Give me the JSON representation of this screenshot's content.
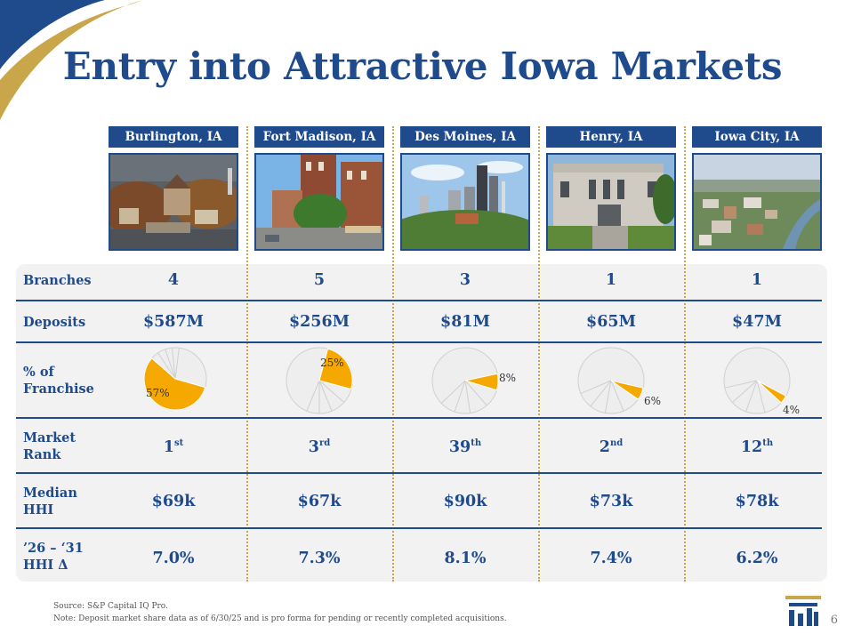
{
  "title": "Entry into Attractive Iowa Markets",
  "cities": [
    {
      "name": "Burlington, IA",
      "branches": "4",
      "deposits": "$587M",
      "pct": 57,
      "pct_label": "57%",
      "rank_num": "1",
      "rank_suffix": "st",
      "median_hhi": "$69k",
      "hhi_delta": "7.0%",
      "photo": "burlington-photo"
    },
    {
      "name": "Fort Madison, IA",
      "branches": "5",
      "deposits": "$256M",
      "pct": 25,
      "pct_label": "25%",
      "rank_num": "3",
      "rank_suffix": "rd",
      "median_hhi": "$67k",
      "hhi_delta": "7.3%",
      "photo": "fort-madison-photo"
    },
    {
      "name": "Des Moines, IA",
      "branches": "3",
      "deposits": "$81M",
      "pct": 8,
      "pct_label": "8%",
      "rank_num": "39",
      "rank_suffix": "th",
      "median_hhi": "$90k",
      "hhi_delta": "8.1%",
      "photo": "des-moines-photo"
    },
    {
      "name": "Henry, IA",
      "branches": "1",
      "deposits": "$65M",
      "pct": 6,
      "pct_label": "6%",
      "rank_num": "2",
      "rank_suffix": "nd",
      "median_hhi": "$73k",
      "hhi_delta": "7.4%",
      "photo": "henry-photo"
    },
    {
      "name": "Iowa City, IA",
      "branches": "1",
      "deposits": "$47M",
      "pct": 4,
      "pct_label": "4%",
      "rank_num": "12",
      "rank_suffix": "th",
      "median_hhi": "$78k",
      "hhi_delta": "6.2%",
      "photo": "iowa-city-photo"
    }
  ],
  "row_labels": {
    "branches": "Branches",
    "deposits": "Deposits",
    "franchise_1": "% of",
    "franchise_2": "Franchise",
    "rank_1": "Market",
    "rank_2": "Rank",
    "hhi_1": "Median",
    "hhi_2": "HHI",
    "delta_1": "’26 – ‘31",
    "delta_2": "HHI Δ"
  },
  "footer": {
    "source": "Source: S&P Capital IQ Pro.",
    "note": "Note: Deposit market share data as of 6/30/25 and is pro forma for pending or recently completed acquisitions."
  },
  "page_number": "6",
  "colors": {
    "navy": "#1f4a8c",
    "gold": "#f5a800",
    "divider_gold": "#c9a64a",
    "pie_gray": "#eeeeee"
  }
}
